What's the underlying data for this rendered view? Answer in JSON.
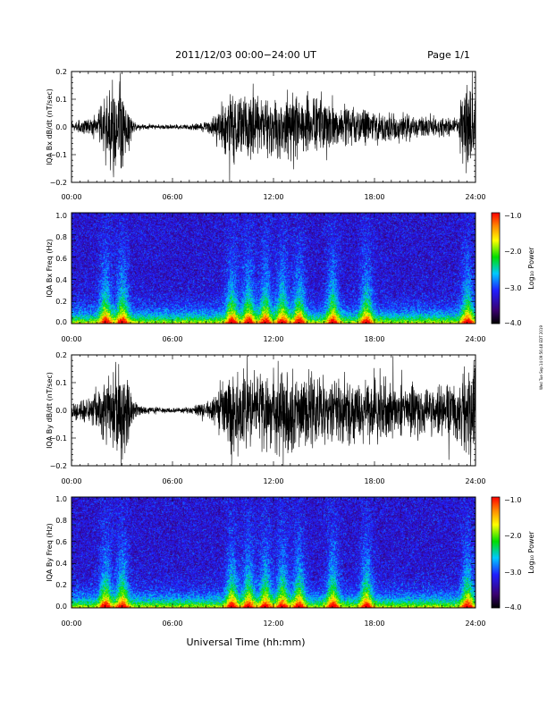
{
  "header": {
    "title": "2011/12/03  00:00−24:00 UT",
    "page": "Page 1/1"
  },
  "footer": {
    "xlabel": "Universal Time (hh:mm)",
    "side_note": "Wed Tue Sep 14 09:56:48 EDT 2019"
  },
  "colorbar": {
    "label": "Log₁₀ Power",
    "ticks": [
      "−1.0",
      "−2.0",
      "−3.0",
      "−4.0"
    ],
    "range": [
      -4.0,
      -1.0
    ],
    "colormap": "rainbow (black-purple-blue-cyan-green-yellow-orange-red)"
  },
  "colors": {
    "waveform": "#000000",
    "spectrogram_background": "#2a0a4a",
    "low_power": "#000000",
    "high_power": "#ff0000"
  },
  "chart_data": [
    {
      "type": "line",
      "ylabel": "IQA Bx dB/dt (nT/sec)",
      "xticks": [
        "00:00",
        "06:00",
        "12:00",
        "18:00",
        "24:00"
      ],
      "yticks": [
        "0.2",
        "0.1",
        "0.0",
        "−0.1",
        "−0.2"
      ],
      "xlim": [
        0,
        24
      ],
      "ylim": [
        -0.2,
        0.2
      ],
      "envelope": {
        "x_hours": [
          0,
          1,
          1.5,
          2,
          2.5,
          2.8,
          3.0,
          3.3,
          3.6,
          4,
          5,
          6,
          7,
          8,
          8.5,
          9,
          9.5,
          10,
          11,
          12,
          13,
          14,
          15,
          16,
          17,
          18,
          19,
          20,
          21,
          22,
          23,
          23.3,
          23.6,
          24
        ],
        "amplitude": [
          0.02,
          0.035,
          0.06,
          0.12,
          0.2,
          0.2,
          0.2,
          0.15,
          0.03,
          0.012,
          0.01,
          0.01,
          0.012,
          0.02,
          0.05,
          0.09,
          0.17,
          0.15,
          0.13,
          0.13,
          0.14,
          0.13,
          0.11,
          0.09,
          0.08,
          0.07,
          0.06,
          0.05,
          0.045,
          0.04,
          0.04,
          0.2,
          0.2,
          0.2
        ]
      }
    },
    {
      "type": "heatmap",
      "ylabel": "IQA Bx Freq (Hz)",
      "xticks": [
        "00:00",
        "06:00",
        "12:00",
        "18:00",
        "24:00"
      ],
      "yticks": [
        "1.0",
        "0.8",
        "0.6",
        "0.4",
        "0.2",
        "0.0"
      ],
      "xlim": [
        0,
        24
      ],
      "ylim": [
        0.0,
        1.0
      ],
      "value_range_log10": [
        -4.0,
        -1.0
      ],
      "enhanced_power_times_hours": [
        2.0,
        3.0,
        9.5,
        10.5,
        11.5,
        12.5,
        13.5,
        15.5,
        17.5,
        23.5
      ]
    },
    {
      "type": "line",
      "ylabel": "IQA By dB/dt (nT/sec)",
      "xticks": [
        "00:00",
        "06:00",
        "12:00",
        "18:00",
        "24:00"
      ],
      "yticks": [
        "0.2",
        "0.1",
        "0.0",
        "−0.1",
        "−0.2"
      ],
      "xlim": [
        0,
        24
      ],
      "ylim": [
        -0.2,
        0.2
      ],
      "envelope": {
        "x_hours": [
          0,
          1,
          1.5,
          2,
          2.5,
          2.8,
          3.0,
          3.3,
          3.6,
          4,
          5,
          6,
          7,
          8,
          8.5,
          9,
          9.5,
          10,
          11,
          12,
          13,
          14,
          15,
          16,
          17,
          18,
          19,
          20,
          21,
          22,
          23,
          23.3,
          23.6,
          24
        ],
        "amplitude": [
          0.035,
          0.05,
          0.08,
          0.14,
          0.2,
          0.2,
          0.2,
          0.17,
          0.06,
          0.02,
          0.012,
          0.01,
          0.015,
          0.035,
          0.07,
          0.12,
          0.2,
          0.18,
          0.16,
          0.2,
          0.17,
          0.16,
          0.15,
          0.14,
          0.14,
          0.15,
          0.13,
          0.11,
          0.1,
          0.11,
          0.12,
          0.2,
          0.2,
          0.2
        ]
      }
    },
    {
      "type": "heatmap",
      "ylabel": "IQA By Freq (Hz)",
      "xticks": [
        "00:00",
        "06:00",
        "12:00",
        "18:00",
        "24:00"
      ],
      "yticks": [
        "1.0",
        "0.8",
        "0.6",
        "0.4",
        "0.2",
        "0.0"
      ],
      "xlim": [
        0,
        24
      ],
      "ylim": [
        0.0,
        1.0
      ],
      "value_range_log10": [
        -4.0,
        -1.0
      ],
      "enhanced_power_times_hours": [
        2.0,
        3.0,
        9.5,
        10.5,
        11.5,
        12.5,
        13.5,
        15.5,
        17.5,
        23.5
      ]
    }
  ]
}
